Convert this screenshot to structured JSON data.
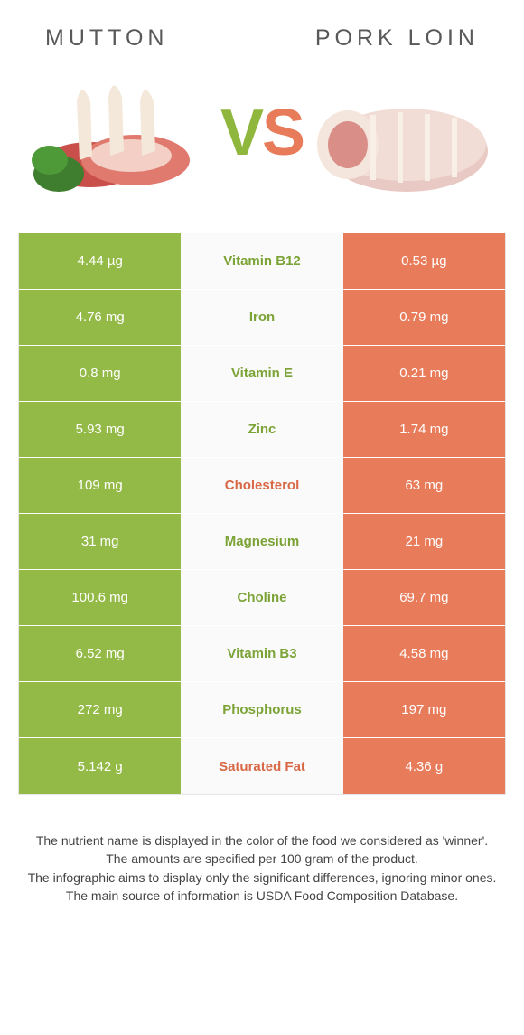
{
  "left_food": "Mutton",
  "right_food": "Pork loin",
  "vs": {
    "v": "V",
    "s": "S"
  },
  "colors": {
    "left": "#93b946",
    "right": "#e87b5a",
    "left_text_on_mid": "#7ba336",
    "right_text_on_mid": "#d86846",
    "mid_bg": "#fafafa",
    "border": "#e5e5e5"
  },
  "rows": [
    {
      "label": "Vitamin B12",
      "left": "4.44 µg",
      "right": "0.53 µg",
      "winner": "left"
    },
    {
      "label": "Iron",
      "left": "4.76 mg",
      "right": "0.79 mg",
      "winner": "left"
    },
    {
      "label": "Vitamin E",
      "left": "0.8 mg",
      "right": "0.21 mg",
      "winner": "left"
    },
    {
      "label": "Zinc",
      "left": "5.93 mg",
      "right": "1.74 mg",
      "winner": "left"
    },
    {
      "label": "Cholesterol",
      "left": "109 mg",
      "right": "63 mg",
      "winner": "right"
    },
    {
      "label": "Magnesium",
      "left": "31 mg",
      "right": "21 mg",
      "winner": "left"
    },
    {
      "label": "Choline",
      "left": "100.6 mg",
      "right": "69.7 mg",
      "winner": "left"
    },
    {
      "label": "Vitamin B3",
      "left": "6.52 mg",
      "right": "4.58 mg",
      "winner": "left"
    },
    {
      "label": "Phosphorus",
      "left": "272 mg",
      "right": "197 mg",
      "winner": "left"
    },
    {
      "label": "Saturated Fat",
      "left": "5.142 g",
      "right": "4.36 g",
      "winner": "right"
    }
  ],
  "footer": [
    "The nutrient name is displayed in the color of the food we considered as 'winner'.",
    "The amounts are specified per 100 gram of the product.",
    "The infographic aims to display only the significant differences, ignoring minor ones.",
    "The main source of information is USDA Food Composition Database."
  ]
}
